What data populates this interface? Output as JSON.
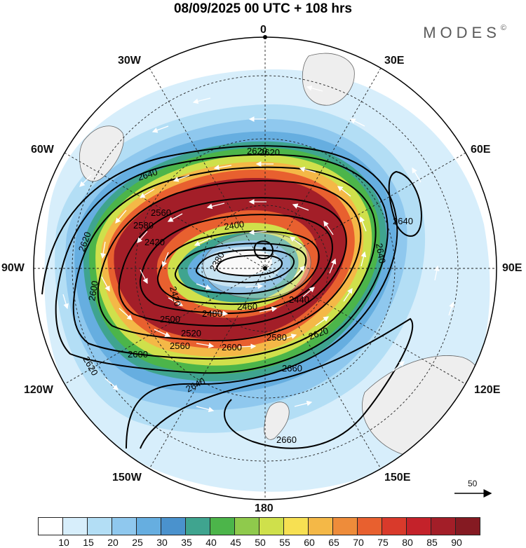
{
  "title": "08/09/2025  00 UTC  + 108 hrs",
  "brand": "MODES",
  "brand_mark": "©",
  "meridian_labels": {
    "top": "0",
    "bottom": "180",
    "left": "90W",
    "right": "90E",
    "w30": "30W",
    "e30": "30E",
    "w60": "60W",
    "e60": "60E",
    "w120": "120W",
    "e120": "120E",
    "w150": "150W",
    "e150": "150E"
  },
  "contour_labels": [
    "2640",
    "2620",
    "2620",
    "2600",
    "2620",
    "2600",
    "2560",
    "2500",
    "2480",
    "2460",
    "2440",
    "2420",
    "2400",
    "2380",
    "2620",
    "2580",
    "2560",
    "2600",
    "2620",
    "2640",
    "2660",
    "2660",
    "2640",
    "2580",
    "2420",
    "2520",
    "2640"
  ],
  "scale": {
    "label": "50",
    "unit_arrow": "reference-vector"
  },
  "colorbar": {
    "ticks": [
      "10",
      "15",
      "20",
      "25",
      "30",
      "35",
      "40",
      "45",
      "50",
      "55",
      "60",
      "65",
      "70",
      "75",
      "80",
      "85",
      "90"
    ],
    "colors": [
      "#ffffff",
      "#d7eefb",
      "#b3def5",
      "#8fc8ee",
      "#66aee0",
      "#4a92cd",
      "#3fa48f",
      "#4cb54a",
      "#8fca4c",
      "#cfe04b",
      "#f7e052",
      "#f4b847",
      "#ee8c3a",
      "#e8602f",
      "#d93a2b",
      "#c4222a",
      "#a31e28",
      "#851a22"
    ]
  }
}
